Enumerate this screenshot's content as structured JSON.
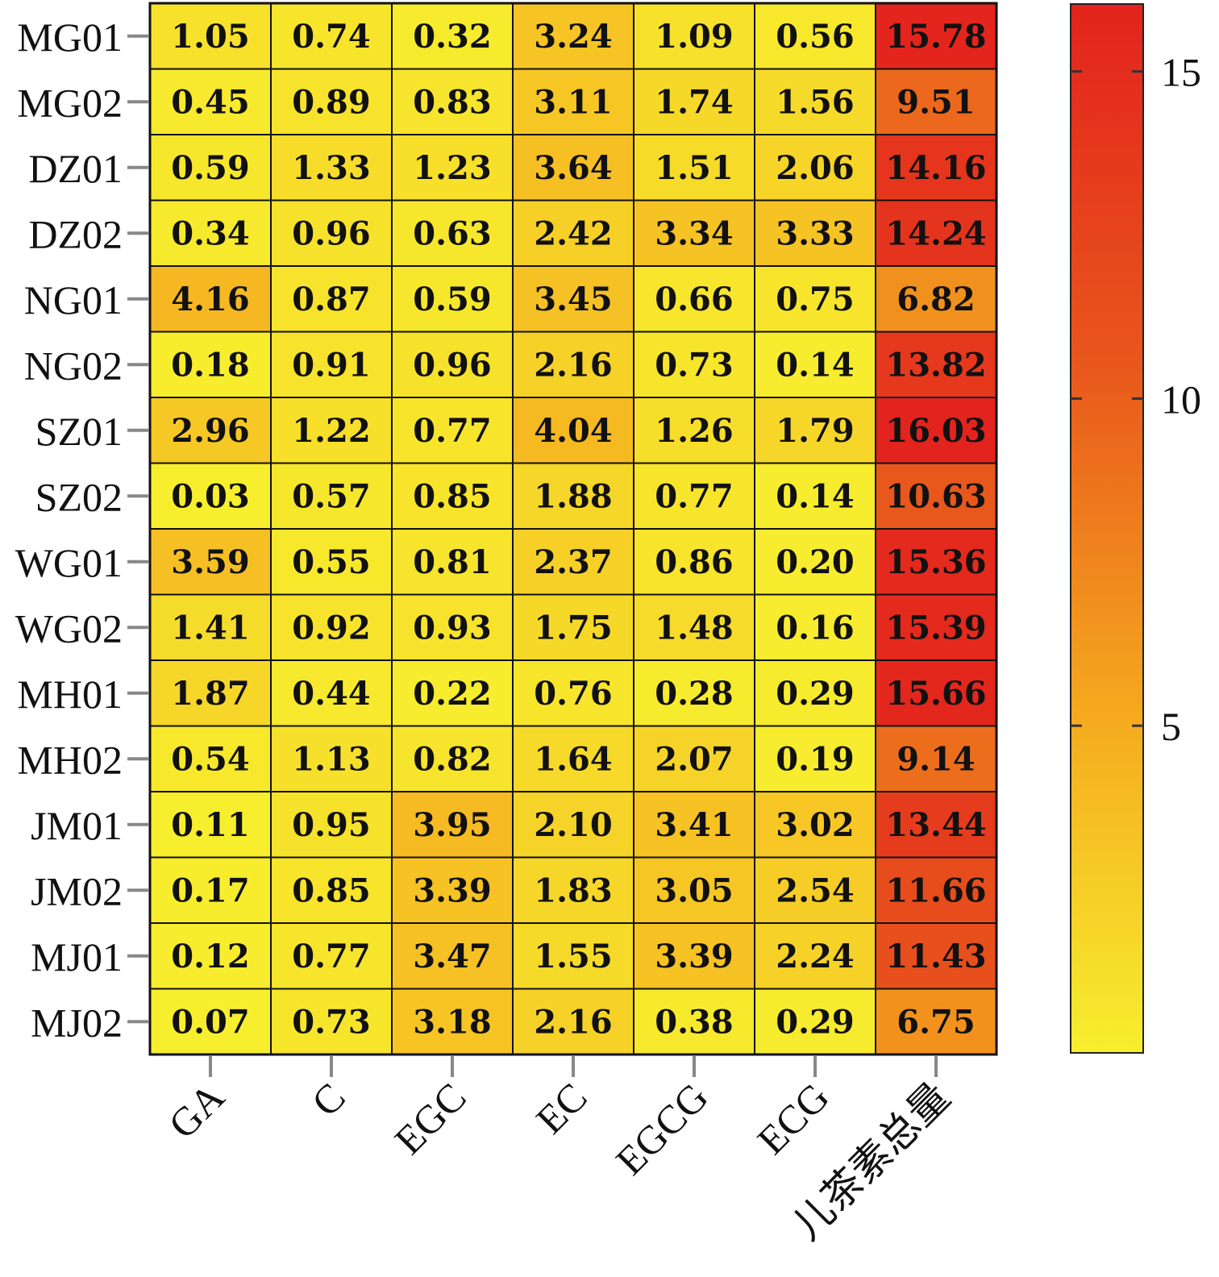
{
  "chart_data": {
    "type": "heatmap",
    "rows": [
      "MG01",
      "MG02",
      "DZ01",
      "DZ02",
      "NG01",
      "NG02",
      "SZ01",
      "SZ02",
      "WG01",
      "WG02",
      "MH01",
      "MH02",
      "JM01",
      "JM02",
      "MJ01",
      "MJ02"
    ],
    "columns": [
      "GA",
      "C",
      "EGC",
      "EC",
      "EGCG",
      "ECG",
      "儿茶素总量"
    ],
    "values": [
      [
        "1.05",
        "0.74",
        "0.32",
        "3.24",
        "1.09",
        "0.56",
        "15.78"
      ],
      [
        "0.45",
        "0.89",
        "0.83",
        "3.11",
        "1.74",
        "1.56",
        "9.51"
      ],
      [
        "0.59",
        "1.33",
        "1.23",
        "3.64",
        "1.51",
        "2.06",
        "14.16"
      ],
      [
        "0.34",
        "0.96",
        "0.63",
        "2.42",
        "3.34",
        "3.33",
        "14.24"
      ],
      [
        "4.16",
        "0.87",
        "0.59",
        "3.45",
        "0.66",
        "0.75",
        "6.82"
      ],
      [
        "0.18",
        "0.91",
        "0.96",
        "2.16",
        "0.73",
        "0.14",
        "13.82"
      ],
      [
        "2.96",
        "1.22",
        "0.77",
        "4.04",
        "1.26",
        "1.79",
        "16.03"
      ],
      [
        "0.03",
        "0.57",
        "0.85",
        "1.88",
        "0.77",
        "0.14",
        "10.63"
      ],
      [
        "3.59",
        "0.55",
        "0.81",
        "2.37",
        "0.86",
        "0.20",
        "15.36"
      ],
      [
        "1.41",
        "0.92",
        "0.93",
        "1.75",
        "1.48",
        "0.16",
        "15.39"
      ],
      [
        "1.87",
        "0.44",
        "0.22",
        "0.76",
        "0.28",
        "0.29",
        "15.66"
      ],
      [
        "0.54",
        "1.13",
        "0.82",
        "1.64",
        "2.07",
        "0.19",
        "9.14"
      ],
      [
        "0.11",
        "0.95",
        "3.95",
        "2.10",
        "3.41",
        "3.02",
        "13.44"
      ],
      [
        "0.17",
        "0.85",
        "3.39",
        "1.83",
        "3.05",
        "2.54",
        "11.66"
      ],
      [
        "0.12",
        "0.77",
        "3.47",
        "1.55",
        "3.39",
        "2.24",
        "11.43"
      ],
      [
        "0.07",
        "0.73",
        "3.18",
        "2.16",
        "0.38",
        "0.29",
        "6.75"
      ]
    ],
    "colorbar": {
      "min": 0,
      "max": 16.03,
      "ticks": [
        5,
        10,
        15
      ],
      "tick_labels": [
        "5",
        "10",
        "15"
      ],
      "colors": [
        "#f7ef2e",
        "#f5a81e",
        "#e8561c",
        "#e3231d"
      ]
    }
  }
}
